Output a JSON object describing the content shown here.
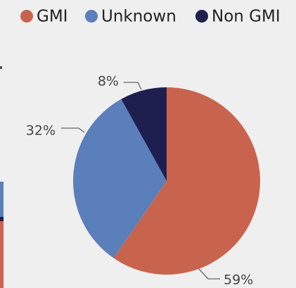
{
  "chart_data": {
    "type": "pie",
    "categories": [
      "GMI",
      "Unknown",
      "Non GMI"
    ],
    "values": [
      59,
      32,
      8
    ],
    "value_labels": [
      "59%",
      "32%",
      "8%"
    ],
    "colors": [
      "#c8644e",
      "#5b7fba",
      "#1f1f4f"
    ],
    "legend": "top"
  }
}
